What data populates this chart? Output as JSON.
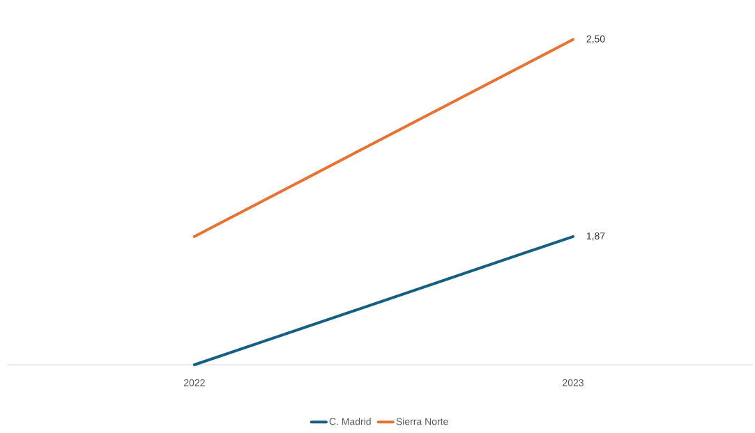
{
  "chart_data": {
    "type": "line",
    "categories": [
      "2022",
      "2023"
    ],
    "series": [
      {
        "name": "C. Madrid",
        "color": "#156082",
        "values": [
          1.46,
          1.87
        ],
        "value_labels": [
          null,
          "1,87"
        ]
      },
      {
        "name": "Sierra Norte",
        "color": "#e97132",
        "values": [
          1.87,
          2.5
        ],
        "value_labels": [
          null,
          "2,50"
        ]
      }
    ],
    "legend": "bottom"
  }
}
